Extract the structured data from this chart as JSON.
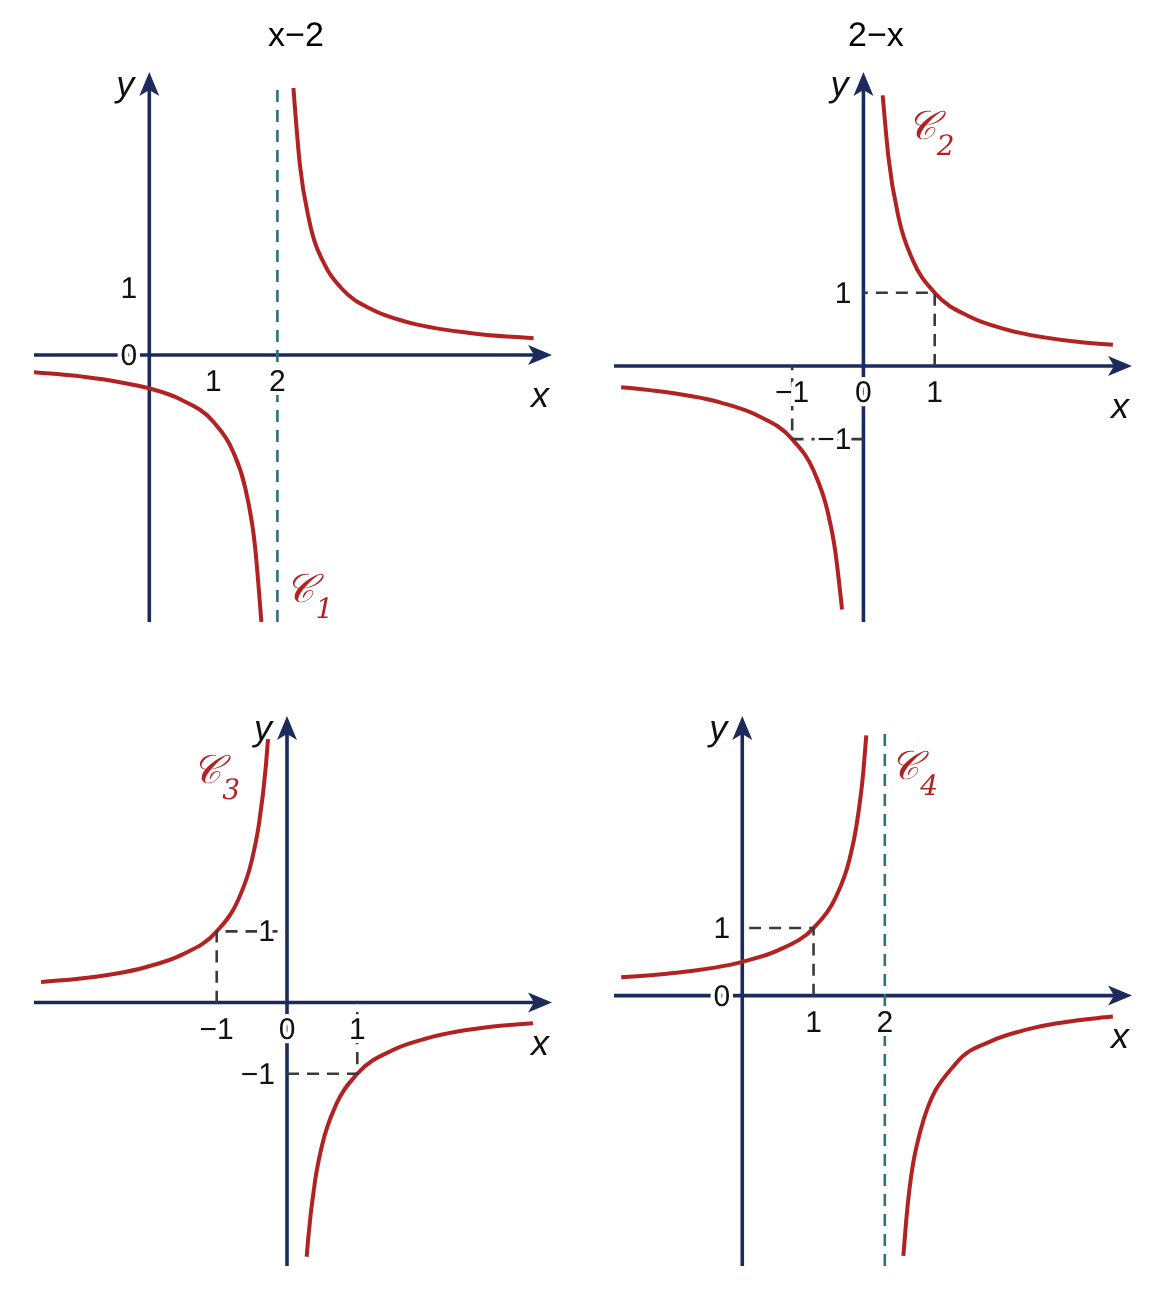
{
  "chart_data": [
    {
      "type": "line",
      "annotations": [
        "x−2"
      ],
      "xlabel": "x",
      "ylabel": "y",
      "xlim": [
        -1.8,
        6.1
      ],
      "ylim": [
        -4,
        4
      ],
      "xticks": [
        1,
        2
      ],
      "yticks": [
        0,
        1
      ],
      "legend": false,
      "grid": false,
      "marker": "none",
      "ref_lines": [
        {
          "axis": "x",
          "value": 2,
          "color": "#2f6f80",
          "line_style": "dashed"
        }
      ],
      "series": [
        {
          "name": "𝒞$_{1}$",
          "type": "line",
          "color": "#b22222",
          "line_style": "solid",
          "x": [
            -1.8,
            -1,
            -0.5,
            0,
            0.5,
            1,
            1.3,
            1.5,
            1.65,
            1.75,
            2,
            2.25,
            2.35,
            2.5,
            2.75,
            3,
            3.5,
            4,
            5,
            6
          ],
          "values": [
            -0.26,
            -0.33,
            -0.4,
            -0.5,
            -0.67,
            -1,
            -1.43,
            -2,
            -2.86,
            -4,
            null,
            4,
            2.86,
            2,
            1.33,
            1,
            0.67,
            0.5,
            0.33,
            0.25
          ]
        }
      ]
    },
    {
      "type": "line",
      "annotations": [
        "2−x"
      ],
      "xlabel": "x",
      "ylabel": "y",
      "xlim": [
        -3.5,
        3.6
      ],
      "ylim": [
        -3.5,
        3.8
      ],
      "xticks": [
        -1,
        0,
        1
      ],
      "yticks": [
        -1,
        1
      ],
      "legend": false,
      "grid": false,
      "marker": "none",
      "series": [
        {
          "name": "𝒞$_{2}$",
          "type": "line",
          "color": "#b22222",
          "line_style": "solid",
          "x": [
            -3.4,
            -3,
            -2,
            -1.5,
            -1,
            -0.7,
            -0.5,
            -0.4,
            -0.3,
            0,
            0.27,
            0.35,
            0.5,
            0.7,
            1,
            1.5,
            2,
            3,
            3.5
          ],
          "values": [
            -0.29,
            -0.33,
            -0.5,
            -0.67,
            -1,
            -1.43,
            -2,
            -2.5,
            -3.33,
            null,
            3.7,
            2.86,
            2,
            1.43,
            1,
            0.67,
            0.5,
            0.33,
            0.29
          ]
        },
        {
          "type": "line",
          "color": "#3a3a3a",
          "line_style": "dashed",
          "x": [
            1,
            1,
            0
          ],
          "values": [
            0,
            1,
            1
          ]
        },
        {
          "type": "line",
          "color": "#3a3a3a",
          "line_style": "dashed",
          "x": [
            0,
            -1,
            -1
          ],
          "values": [
            -1,
            -1,
            0
          ]
        }
      ]
    },
    {
      "type": "line",
      "xlabel": "x",
      "ylabel": "y",
      "xlim": [
        -3.6,
        3.6
      ],
      "ylim": [
        -3.7,
        3.8
      ],
      "xticks": [
        -1,
        0,
        1
      ],
      "yticks": [
        -1,
        1
      ],
      "legend": false,
      "grid": false,
      "marker": "none",
      "series": [
        {
          "name": "𝒞$_{3}$",
          "type": "line",
          "color": "#b22222",
          "line_style": "solid",
          "x": [
            -3.5,
            -3,
            -2,
            -1.5,
            -1,
            -0.7,
            -0.5,
            -0.4,
            -0.3,
            -0.27,
            0,
            0.28,
            0.3,
            0.4,
            0.5,
            0.7,
            1,
            1.5,
            2,
            3,
            3.5
          ],
          "values": [
            0.29,
            0.33,
            0.5,
            0.67,
            1,
            1.43,
            2,
            2.5,
            3.33,
            3.7,
            null,
            -3.57,
            -3.33,
            -2.5,
            -2,
            -1.43,
            -1,
            -0.67,
            -0.5,
            -0.33,
            -0.29
          ]
        },
        {
          "type": "line",
          "color": "#3a3a3a",
          "line_style": "dashed",
          "x": [
            -1,
            -1,
            0
          ],
          "values": [
            0,
            1,
            1
          ]
        },
        {
          "type": "line",
          "color": "#3a3a3a",
          "line_style": "dashed",
          "x": [
            0,
            1,
            1
          ],
          "values": [
            -1,
            -1,
            0
          ]
        }
      ]
    },
    {
      "type": "line",
      "xlabel": "x",
      "ylabel": "y",
      "xlim": [
        -1.8,
        5.3
      ],
      "ylim": [
        -4,
        3.9
      ],
      "xticks": [
        1,
        2
      ],
      "yticks": [
        0,
        1
      ],
      "legend": false,
      "grid": false,
      "marker": "none",
      "ref_lines": [
        {
          "axis": "x",
          "value": 2,
          "color": "#2f6f80",
          "line_style": "dashed"
        }
      ],
      "series": [
        {
          "name": "𝒞$_{4}$",
          "type": "line",
          "color": "#b22222",
          "line_style": "solid",
          "x": [
            -1.7,
            -1,
            0,
            0.5,
            1,
            1.3,
            1.5,
            1.6,
            1.7,
            1.74,
            2,
            2.26,
            2.3,
            2.5,
            3,
            3.5,
            4,
            5,
            5.2
          ],
          "values": [
            0.27,
            0.33,
            0.5,
            0.67,
            1,
            1.43,
            2,
            2.5,
            3.33,
            3.85,
            null,
            -3.85,
            -3.33,
            -2,
            -1,
            -0.67,
            -0.5,
            -0.33,
            -0.31
          ]
        },
        {
          "type": "line",
          "color": "#3a3a3a",
          "line_style": "dashed",
          "x": [
            1,
            1,
            0
          ],
          "values": [
            0,
            1,
            1
          ]
        }
      ]
    }
  ]
}
